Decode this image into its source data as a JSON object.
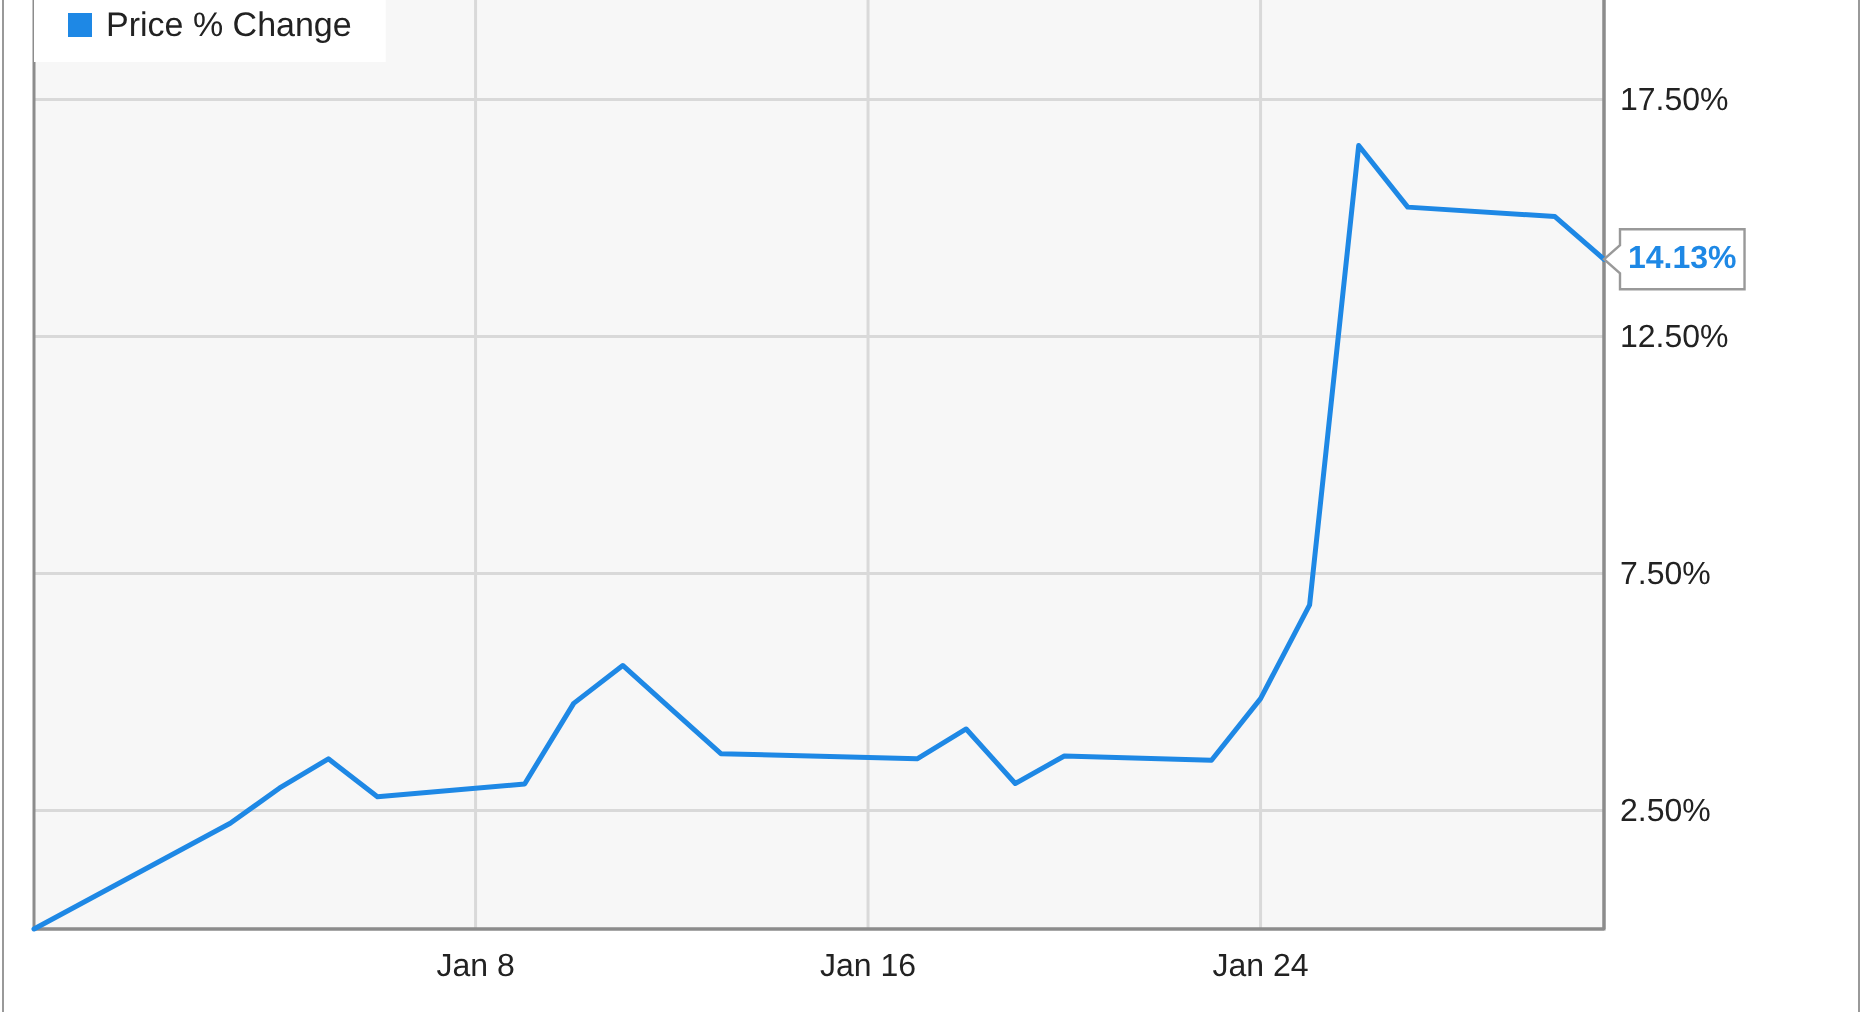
{
  "chart_data": {
    "type": "line",
    "legend": "top left",
    "grid": true,
    "categories": [
      null,
      null,
      null,
      null,
      null,
      null,
      null,
      null,
      null,
      "Jan 8",
      null,
      null,
      null,
      null,
      null,
      null,
      null,
      "Jan 16",
      null,
      null,
      null,
      null,
      null,
      null,
      null,
      "Jan 24",
      null,
      null,
      null,
      null,
      null,
      null,
      null
    ],
    "ylim": [
      0,
      19.6
    ],
    "yticks": [
      {
        "value": 2.5,
        "label": "2.50%"
      },
      {
        "value": 7.5,
        "label": "7.50%"
      },
      {
        "value": 12.5,
        "label": "12.50%"
      },
      {
        "value": 17.5,
        "label": "17.50%"
      }
    ],
    "series": [
      {
        "name": "Price % Change",
        "color": "#1e88e5",
        "values": [
          0,
          null,
          null,
          null,
          2.23,
          2.97,
          3.59,
          2.79,
          null,
          null,
          3.06,
          4.76,
          5.56,
          4.63,
          3.7,
          null,
          null,
          null,
          3.59,
          4.22,
          3.07,
          3.65,
          null,
          null,
          3.56,
          4.86,
          6.84,
          16.53,
          15.23,
          null,
          null,
          15.03,
          14.13
        ],
        "value_labels": [
          null,
          null,
          null,
          null,
          null,
          null,
          null,
          null,
          null,
          null,
          null,
          null,
          null,
          null,
          null,
          null,
          null,
          null,
          null,
          null,
          null,
          null,
          null,
          null,
          null,
          null,
          null,
          null,
          null,
          null,
          null,
          null,
          "14.13%"
        ]
      }
    ]
  }
}
